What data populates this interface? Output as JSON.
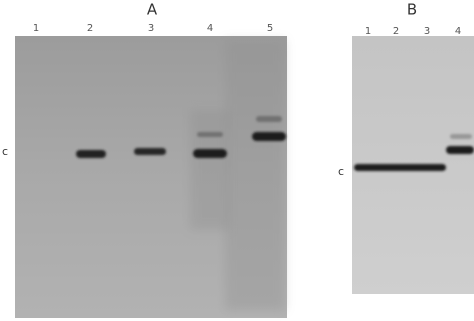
{
  "panels": [
    {
      "label": "A",
      "lanes": [
        "1",
        "2",
        "3",
        "4",
        "5"
      ],
      "band_label": "c"
    },
    {
      "label": "B",
      "lanes": [
        "1",
        "2",
        "3",
        "4"
      ],
      "band_label": "c"
    }
  ]
}
